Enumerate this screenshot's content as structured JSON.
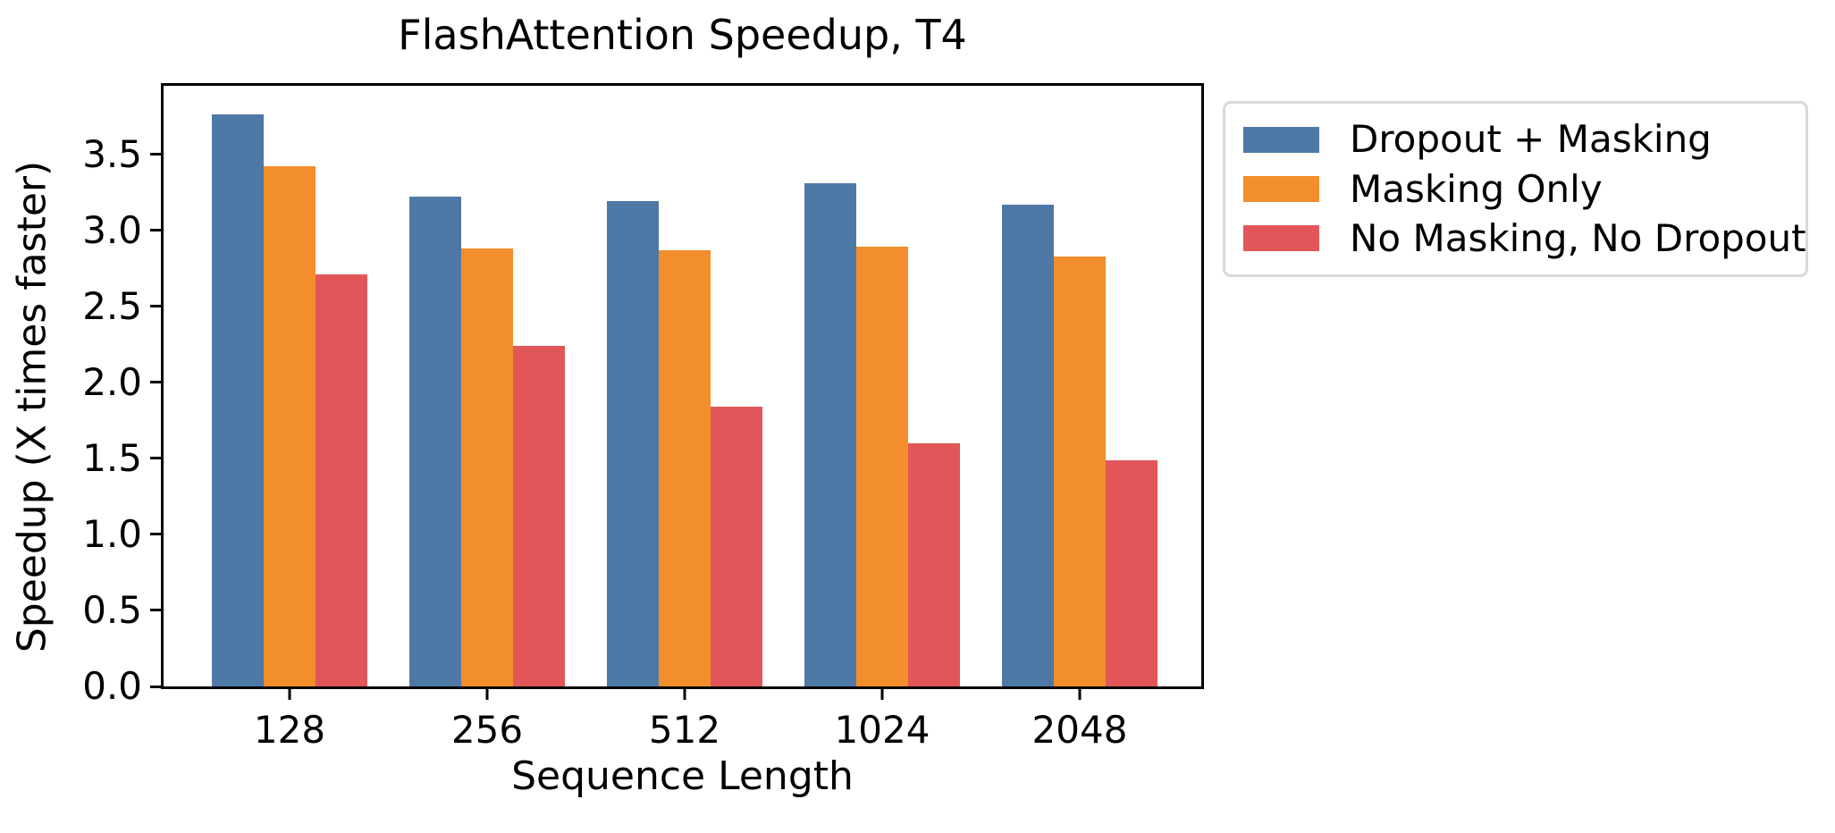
{
  "chart_data": {
    "type": "bar",
    "title": "FlashAttention Speedup, T4",
    "xlabel": "Sequence Length",
    "ylabel": "Speedup (X times faster)",
    "categories": [
      "128",
      "256",
      "512",
      "1024",
      "2048"
    ],
    "series": [
      {
        "name": "Dropout + Masking",
        "color": "#4E79A7",
        "values": [
          3.76,
          3.22,
          3.19,
          3.31,
          3.17
        ]
      },
      {
        "name": "Masking Only",
        "color": "#F28E2B",
        "values": [
          3.42,
          2.88,
          2.87,
          2.89,
          2.83
        ]
      },
      {
        "name": "No Masking, No Dropout",
        "color": "#E15759",
        "values": [
          2.71,
          2.24,
          1.84,
          1.6,
          1.49
        ]
      }
    ],
    "ylim": [
      0,
      3.95
    ],
    "yticks": [
      "0.0",
      "0.5",
      "1.0",
      "1.5",
      "2.0",
      "2.5",
      "3.0",
      "3.5"
    ],
    "grid": false,
    "legend_position": "outside-right",
    "colors": {
      "axis": "#000000",
      "text": "#000000",
      "background": "#ffffff",
      "legend_border": "#d9d9d9"
    }
  }
}
